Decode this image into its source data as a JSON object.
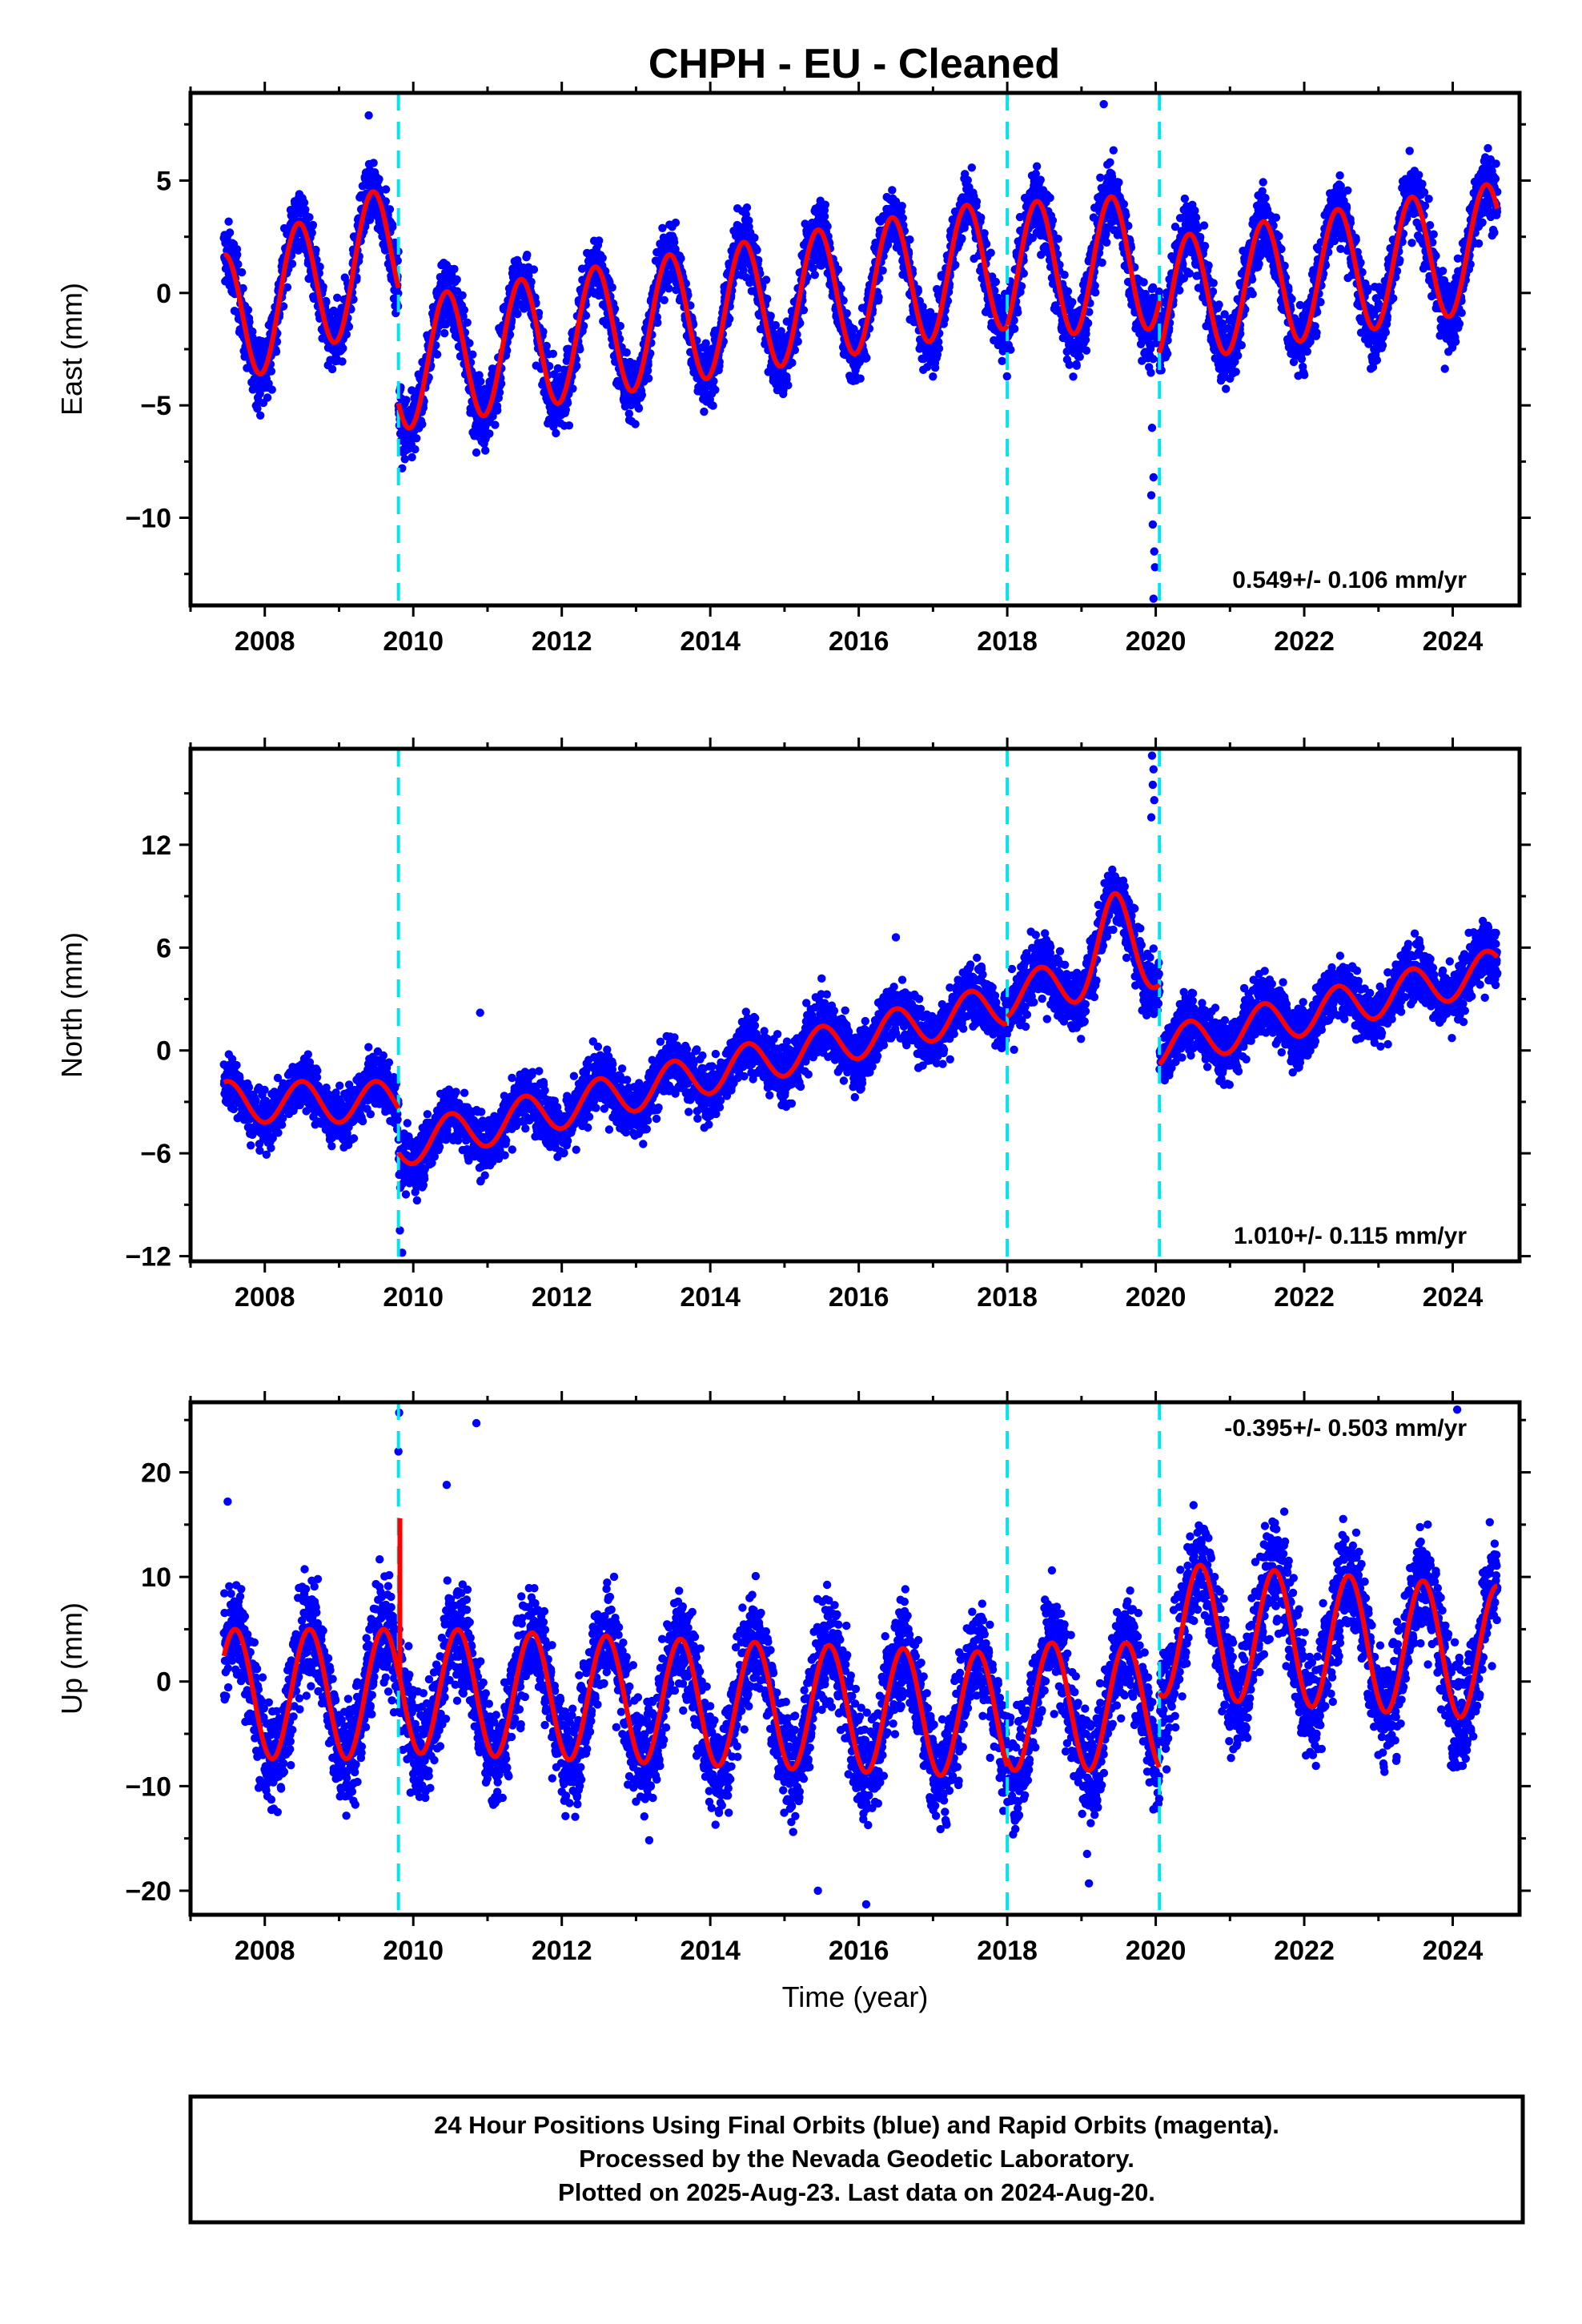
{
  "title": "CHPH  - EU - Cleaned",
  "colors": {
    "points": "#0000ff",
    "model": "#ff0000",
    "breaks": "#00e5ee",
    "frame": "#000000"
  },
  "footer": {
    "line1": "24 Hour Positions Using Final Orbits (blue) and Rapid Orbits (magenta).",
    "line2": "Processed by the Nevada Geodetic Laboratory.",
    "line3": "Plotted on 2025-Aug-23. Last data on 2024-Aug-20."
  },
  "chart_data": [
    {
      "type": "scatter",
      "title": "",
      "xlabel": "",
      "ylabel": "East (mm)",
      "xlim": [
        2007.0,
        2024.9
      ],
      "ylim": [
        -13.9,
        8.9
      ],
      "xticks": [
        "2008",
        "2010",
        "2012",
        "2014",
        "2016",
        "2018",
        "2020",
        "2022",
        "2024"
      ],
      "yticks": [
        -10,
        -5,
        0,
        5
      ],
      "rate_label": "0.549+/- 0.106 mm/yr",
      "rate_position": "bottom-right",
      "breaks": [
        2009.8,
        2018.0,
        2020.05
      ],
      "model": {
        "name": "",
        "segments": [
          {
            "start": 2007.45,
            "end": 2009.8,
            "offset": -1.3,
            "trend": 1.4,
            "amplitude": 3.0,
            "phase_peak": 0.45,
            "noise": 1.0
          },
          {
            "start": 2009.8,
            "end": 2018.0,
            "offset": -3.2,
            "trend": 0.55,
            "amplitude": 2.9,
            "phase_peak": 0.45,
            "noise": 1.0
          },
          {
            "start": 2018.0,
            "end": 2020.05,
            "offset": 1.0,
            "trend": 0.2,
            "amplitude": 3.0,
            "phase_peak": 0.4,
            "noise": 1.2
          },
          {
            "start": 2020.05,
            "end": 2024.6,
            "offset": -0.4,
            "trend": 0.55,
            "amplitude": 2.8,
            "phase_peak": 0.45,
            "noise": 1.1
          }
        ]
      },
      "outliers": [
        {
          "x": 2019.95,
          "y": -6.0
        },
        {
          "x": 2019.97,
          "y": -8.2
        },
        {
          "x": 2019.96,
          "y": -10.3
        },
        {
          "x": 2019.98,
          "y": -11.5
        },
        {
          "x": 2019.99,
          "y": -12.2
        },
        {
          "x": 2019.97,
          "y": -13.6
        },
        {
          "x": 2019.94,
          "y": -9.0
        },
        {
          "x": 2009.85,
          "y": -7.8
        },
        {
          "x": 2009.9,
          "y": -7.0
        },
        {
          "x": 2010.85,
          "y": -7.1
        },
        {
          "x": 2009.4,
          "y": 7.9
        },
        {
          "x": 2019.3,
          "y": 8.4
        }
      ]
    },
    {
      "type": "scatter",
      "title": "",
      "xlabel": "",
      "ylabel": "North (mm)",
      "xlim": [
        2007.0,
        2024.9
      ],
      "ylim": [
        -12.3,
        17.6
      ],
      "xticks": [
        "2008",
        "2010",
        "2012",
        "2014",
        "2016",
        "2018",
        "2020",
        "2022",
        "2024"
      ],
      "yticks": [
        -12,
        -6,
        0,
        6,
        12
      ],
      "rate_label": "1.010+/- 0.115 mm/yr",
      "rate_position": "bottom-right",
      "breaks": [
        2009.8,
        2018.0,
        2020.05
      ],
      "model": {
        "name": "",
        "segments": [
          {
            "start": 2007.45,
            "end": 2009.8,
            "offset": -3.0,
            "trend": 0.0,
            "amplitude": 1.2,
            "phase_peak": 0.5,
            "noise": 1.1
          },
          {
            "start": 2009.8,
            "end": 2018.0,
            "offset": -5.6,
            "trend": 1.02,
            "amplitude": 1.2,
            "phase_peak": 0.5,
            "noise": 1.2
          },
          {
            "start": 2018.0,
            "end": 2020.05,
            "offset": 3.2,
            "trend": 0.8,
            "amplitude": 1.3,
            "phase_peak": 0.45,
            "noise": 1.3
          },
          {
            "start": 2020.05,
            "end": 2024.6,
            "offset": 0.1,
            "trend": 1.02,
            "amplitude": 1.2,
            "phase_peak": 0.45,
            "noise": 1.2
          }
        ],
        "bump": {
          "center": 2019.45,
          "width": 0.3,
          "height": 3.5
        }
      },
      "outliers": [
        {
          "x": 2019.95,
          "y": 17.2
        },
        {
          "x": 2019.97,
          "y": 16.4
        },
        {
          "x": 2019.96,
          "y": 15.5
        },
        {
          "x": 2019.98,
          "y": 14.6
        },
        {
          "x": 2019.94,
          "y": 13.6
        },
        {
          "x": 2016.5,
          "y": 6.6
        },
        {
          "x": 2015.5,
          "y": 4.2
        },
        {
          "x": 2009.85,
          "y": -11.8
        },
        {
          "x": 2009.82,
          "y": -10.5
        },
        {
          "x": 2010.9,
          "y": 2.2
        }
      ]
    },
    {
      "type": "scatter",
      "title": "",
      "xlabel": "Time (year)",
      "ylabel": "Up (mm)",
      "xlim": [
        2007.0,
        2024.9
      ],
      "ylim": [
        -22.3,
        26.7
      ],
      "xticks": [
        "2008",
        "2010",
        "2012",
        "2014",
        "2016",
        "2018",
        "2020",
        "2022",
        "2024"
      ],
      "yticks": [
        -20,
        -10,
        0,
        10,
        20
      ],
      "rate_label": "-0.395+/- 0.503 mm/yr",
      "rate_position": "top-right",
      "breaks": [
        2009.8,
        2018.0,
        2020.05
      ],
      "model": {
        "name": "",
        "segments": [
          {
            "start": 2007.45,
            "end": 2009.8,
            "offset": -1.2,
            "trend": 0.0,
            "amplitude": 6.2,
            "phase_peak": 0.6,
            "noise": 3.6
          },
          {
            "start": 2009.8,
            "end": 2018.0,
            "offset": -0.8,
            "trend": -0.3,
            "amplitude": 6.0,
            "phase_peak": 0.6,
            "noise": 3.6
          },
          {
            "start": 2018.0,
            "end": 2020.05,
            "offset": -2.4,
            "trend": 0.0,
            "amplitude": 6.1,
            "phase_peak": 0.6,
            "noise": 3.6
          },
          {
            "start": 2020.05,
            "end": 2024.6,
            "offset": 5.0,
            "trend": -0.5,
            "amplitude": 6.4,
            "phase_peak": 0.6,
            "noise": 3.8
          }
        ],
        "spike": {
          "x": 2009.82,
          "y_from": 0.0,
          "y_to": 15.6
        }
      },
      "outliers": [
        {
          "x": 2009.81,
          "y": 25.7
        },
        {
          "x": 2009.8,
          "y": 22.0
        },
        {
          "x": 2010.85,
          "y": 24.7
        },
        {
          "x": 2024.06,
          "y": 26.0
        },
        {
          "x": 2010.45,
          "y": 18.8
        },
        {
          "x": 2016.1,
          "y": -21.3
        },
        {
          "x": 2007.5,
          "y": 17.2
        },
        {
          "x": 2015.45,
          "y": -20.0
        },
        {
          "x": 2019.1,
          "y": -19.3
        }
      ]
    }
  ]
}
